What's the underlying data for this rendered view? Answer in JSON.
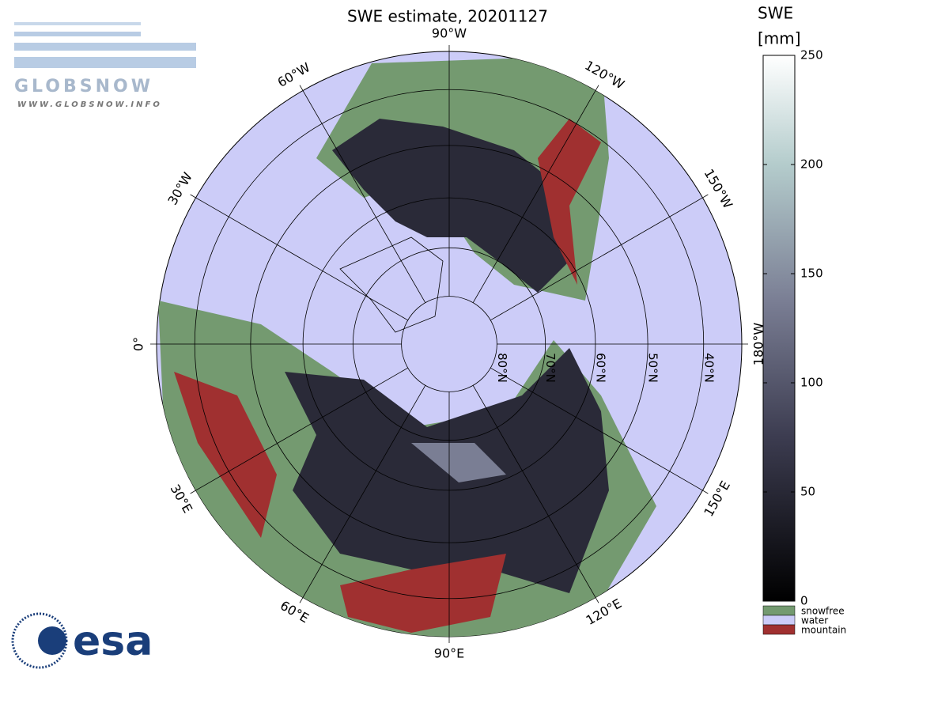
{
  "header": {
    "title": "SWE estimate, 20201127"
  },
  "map": {
    "meridians": [
      {
        "lon": 0,
        "label": "0°"
      },
      {
        "lon": -30,
        "label": "30°W"
      },
      {
        "lon": -60,
        "label": "60°W"
      },
      {
        "lon": -90,
        "label": "90°W"
      },
      {
        "lon": -120,
        "label": "120°W"
      },
      {
        "lon": -150,
        "label": "150°W"
      },
      {
        "lon": -180,
        "label": "180°W"
      },
      {
        "lon": 150,
        "label": "150°E"
      },
      {
        "lon": 120,
        "label": "120°E"
      },
      {
        "lon": 90,
        "label": "90°E"
      },
      {
        "lon": 60,
        "label": "60°E"
      },
      {
        "lon": 30,
        "label": "30°E"
      }
    ],
    "parallels": [
      {
        "lat": 80,
        "label": "80°N"
      },
      {
        "lat": 70,
        "label": "70°N"
      },
      {
        "lat": 60,
        "label": "60°N"
      },
      {
        "lat": 50,
        "label": "50°N"
      },
      {
        "lat": 40,
        "label": "40°N"
      }
    ]
  },
  "colorbar": {
    "title": [
      "SWE",
      "[mm]"
    ],
    "range": [
      0,
      250
    ],
    "ticks": [
      0,
      50,
      100,
      150,
      200,
      250
    ],
    "legend": [
      {
        "label": "snowfree",
        "color": "#749a70"
      },
      {
        "label": "water",
        "color": "#ccccf8"
      },
      {
        "label": "mountain",
        "color": "#a03030"
      }
    ]
  },
  "logos": {
    "globsnow": "GLOBSNOW",
    "url": "WWW.GLOBSNOW.INFO",
    "esa": "esa"
  }
}
